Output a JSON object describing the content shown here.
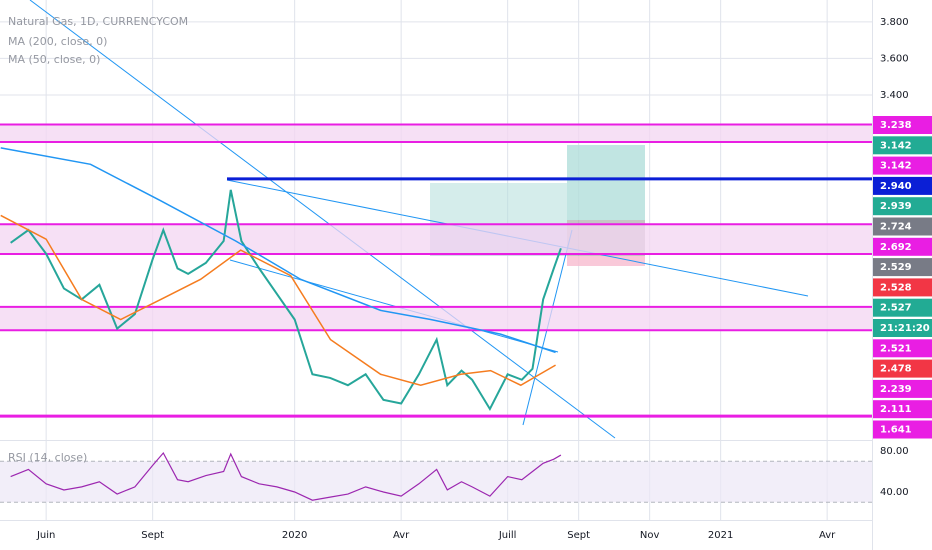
{
  "chart_data": {
    "type": "line",
    "title": "Natural Gas, 1D, CURRENCYCOM",
    "indicators": [
      "MA (200, close, 0)",
      "MA (50, close, 0)"
    ],
    "rsi_title": "RSI (14, close)",
    "xlim": [
      -0.3,
      24.5
    ],
    "xticks": [
      {
        "value": 1,
        "label": "Juin"
      },
      {
        "value": 4,
        "label": "Sept"
      },
      {
        "value": 8,
        "label": "2020"
      },
      {
        "value": 11,
        "label": "Avr"
      },
      {
        "value": 14,
        "label": "Juill"
      },
      {
        "value": 16,
        "label": "Sept"
      },
      {
        "value": 18,
        "label": "Nov"
      },
      {
        "value": 20,
        "label": "2021"
      },
      {
        "value": 23,
        "label": "Avr"
      }
    ],
    "ylim": [
      1.51,
      3.92
    ],
    "yticks": [
      {
        "value": 3.8,
        "label": "3.800"
      },
      {
        "value": 3.6,
        "label": "3.600"
      },
      {
        "value": 3.4,
        "label": "3.400"
      }
    ],
    "grid": true,
    "series": [
      {
        "name": "Natural Gas",
        "color": "#26a69a",
        "x": [
          0,
          0.5,
          1,
          1.5,
          2,
          2.5,
          3,
          3.5,
          4,
          4.3,
          4.7,
          5,
          5.5,
          6,
          6.2,
          6.5,
          7,
          7.5,
          8,
          8.5,
          9,
          9.5,
          10,
          10.5,
          11,
          11.5,
          12,
          12.3,
          12.7,
          13,
          13.5,
          14,
          14.4,
          14.7,
          15,
          15.3,
          15.5
        ],
        "values": [
          2.59,
          2.66,
          2.53,
          2.34,
          2.28,
          2.36,
          2.12,
          2.2,
          2.5,
          2.66,
          2.45,
          2.42,
          2.48,
          2.6,
          2.88,
          2.6,
          2.45,
          2.31,
          2.17,
          1.87,
          1.85,
          1.81,
          1.87,
          1.73,
          1.71,
          1.87,
          2.06,
          1.81,
          1.89,
          1.84,
          1.68,
          1.87,
          1.84,
          1.9,
          2.28,
          2.45,
          2.56
        ]
      },
      {
        "name": "MA (200, close, 0)",
        "color": "#2196f3",
        "x": [
          -0.28,
          2.25,
          4.23,
          6.34,
          8.17,
          10.42,
          11.83,
          13.8,
          15.35
        ],
        "values": [
          3.11,
          3.02,
          2.82,
          2.6,
          2.39,
          2.22,
          2.17,
          2.09,
          1.99
        ]
      },
      {
        "name": "MA (50, close, 0)",
        "color": "#f57c1f",
        "x": [
          -0.28,
          1,
          2,
          3.1,
          4.23,
          5.35,
          6.48,
          7.89,
          9.01,
          10.42,
          11.55,
          12.68,
          13.52,
          14.37,
          15.35
        ],
        "values": [
          2.74,
          2.61,
          2.28,
          2.17,
          2.28,
          2.39,
          2.55,
          2.41,
          2.06,
          1.87,
          1.81,
          1.87,
          1.89,
          1.81,
          1.92
        ]
      }
    ],
    "zones": [
      [
        3.142,
        3.238
      ],
      [
        2.529,
        2.692
      ],
      [
        2.111,
        2.239
      ]
    ],
    "levels": [
      {
        "value": 2.94,
        "color": "#0b1fd6"
      },
      {
        "value": 1.641,
        "color": "#e91ee3"
      }
    ],
    "price_labels": [
      {
        "value": 3.238,
        "label": "3.238",
        "color": "#e91ee3"
      },
      {
        "value": 3.142,
        "label": "3.142",
        "color": "#22ab94"
      },
      {
        "value": 3.142,
        "label": "3.142",
        "color": "#e91ee3"
      },
      {
        "value": 2.94,
        "label": "2.940",
        "color": "#0b1fd6"
      },
      {
        "value": 2.939,
        "label": "2.939",
        "color": "#22ab94"
      },
      {
        "value": 2.724,
        "label": "2.724",
        "color": "#787b86"
      },
      {
        "value": 2.692,
        "label": "2.692",
        "color": "#e91ee3"
      },
      {
        "value": 2.529,
        "label": "2.529",
        "color": "#787b86"
      },
      {
        "value": 2.528,
        "label": "2.528",
        "color": "#f23645"
      },
      {
        "value": 2.527,
        "label": "2.527",
        "color": "#22ab94"
      },
      {
        "label": "21:21:20",
        "color": "#22ab94"
      },
      {
        "value": 2.521,
        "label": "2.521",
        "color": "#e91ee3"
      },
      {
        "value": 2.478,
        "label": "2.478",
        "color": "#f23645"
      },
      {
        "value": 2.239,
        "label": "2.239",
        "color": "#e91ee3"
      },
      {
        "value": 2.111,
        "label": "2.111",
        "color": "#e91ee3"
      },
      {
        "value": 1.641,
        "label": "1.641",
        "color": "#e91ee3"
      }
    ],
    "rsi": {
      "color": "#9c27b0",
      "ylim": [
        12.7,
        90.7
      ],
      "yticks": [
        {
          "value": 80,
          "label": "80.00"
        },
        {
          "value": 40,
          "label": "40.00"
        }
      ],
      "bands": [
        30,
        70
      ],
      "x": [
        0,
        0.5,
        1,
        1.5,
        2,
        2.5,
        3,
        3.5,
        4,
        4.3,
        4.7,
        5,
        5.5,
        6,
        6.2,
        6.5,
        7,
        7.5,
        8,
        8.5,
        9,
        9.5,
        10,
        10.5,
        11,
        11.5,
        12,
        12.3,
        12.7,
        13,
        13.5,
        14,
        14.4,
        14.7,
        15,
        15.3,
        15.5
      ],
      "values": [
        55,
        62,
        48,
        42,
        45,
        50,
        38,
        45,
        66,
        78,
        52,
        50,
        56,
        60,
        77,
        55,
        48,
        45,
        40,
        32,
        35,
        38,
        45,
        40,
        36,
        48,
        62,
        42,
        50,
        45,
        36,
        55,
        52,
        60,
        68,
        72,
        76
      ]
    }
  }
}
